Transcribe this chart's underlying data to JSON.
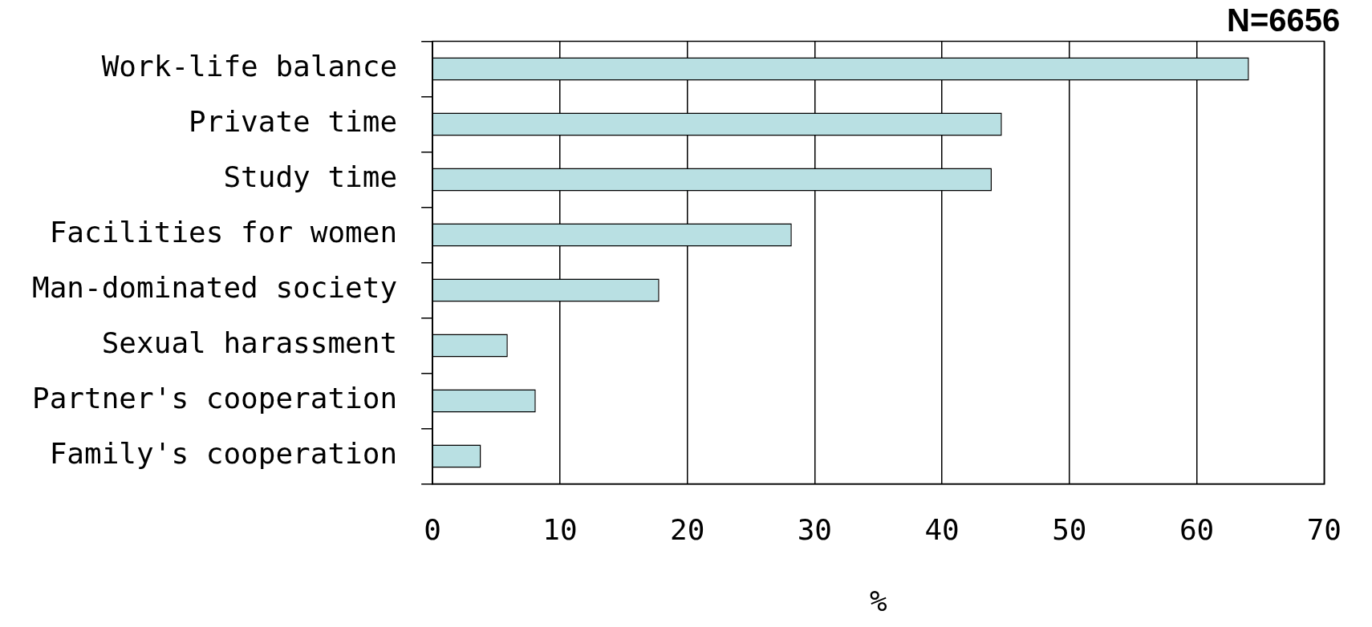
{
  "chart_data": {
    "type": "bar",
    "orientation": "horizontal",
    "categories": [
      "Work-life balance",
      "Private time",
      "Study time",
      "Facilities for women",
      "Man-dominated society",
      "Sexual harassment",
      "Partner's cooperation",
      "Family's cooperation"
    ],
    "values": [
      64.1,
      44.7,
      43.9,
      28.2,
      17.8,
      5.9,
      8.1,
      3.8
    ],
    "color": "#b9e0e3",
    "xlabel": "%",
    "xlim": [
      0,
      70
    ],
    "xticks": [
      0,
      10,
      20,
      30,
      40,
      50,
      60,
      70
    ],
    "grid": "x",
    "legend": false,
    "annotations": [
      "N=6656"
    ]
  }
}
